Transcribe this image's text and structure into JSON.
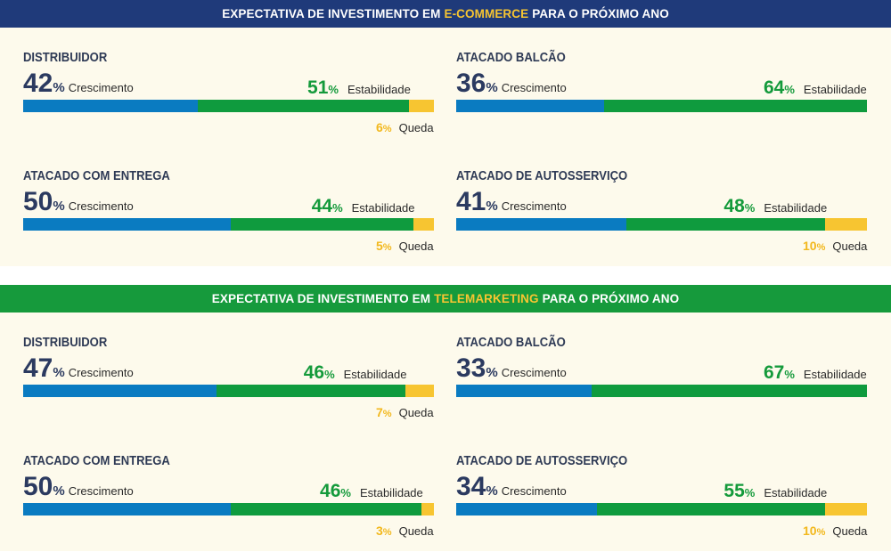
{
  "colors": {
    "growth": "#0a7bc1",
    "stability": "#0f9b3e",
    "decline": "#f7c531",
    "header_ecommerce_bg": "#1f3a7a",
    "header_telemarketing_bg": "#169a3c",
    "highlight_ecommerce": "#f7c531",
    "highlight_telemarketing": "#f7c531"
  },
  "legend": {
    "growth": "Crescimento",
    "stability": "Estabilidade",
    "decline": "Queda",
    "pct": "%"
  },
  "sections": [
    {
      "title_pre": "EXPECTATIVA DE INVESTIMENTO EM",
      "title_hl": "E-COMMERCE",
      "title_post": "PARA O PRÓXIMO ANO",
      "cards": [
        {
          "name": "DISTRIBUIDOR",
          "growth": "42",
          "stability": "51",
          "decline": "6"
        },
        {
          "name": "ATACADO BALCÃO",
          "growth": "36",
          "stability": "64",
          "decline": ""
        },
        {
          "name": "ATACADO COM ENTREGA",
          "growth": "50",
          "stability": "44",
          "decline": "5"
        },
        {
          "name": "ATACADO DE AUTOSSERVIÇO",
          "growth": "41",
          "stability": "48",
          "decline": "10"
        }
      ]
    },
    {
      "title_pre": "EXPECTATIVA DE INVESTIMENTO EM",
      "title_hl": "TELEMARKETING",
      "title_post": "PARA O PRÓXIMO ANO",
      "cards": [
        {
          "name": "DISTRIBUIDOR",
          "growth": "47",
          "stability": "46",
          "decline": "7"
        },
        {
          "name": "ATACADO BALCÃO",
          "growth": "33",
          "stability": "67",
          "decline": ""
        },
        {
          "name": "ATACADO COM ENTREGA",
          "growth": "50",
          "stability": "46",
          "decline": "3"
        },
        {
          "name": "ATACADO DE AUTOSSERVIÇO",
          "growth": "34",
          "stability": "55",
          "decline": "10"
        }
      ]
    }
  ],
  "chart_data": [
    {
      "type": "bar",
      "title": "EXPECTATIVA DE INVESTIMENTO EM E-COMMERCE PARA O PRÓXIMO ANO",
      "categories": [
        "DISTRIBUIDOR",
        "ATACADO BALCÃO",
        "ATACADO COM ENTREGA",
        "ATACADO DE AUTOSSERVIÇO"
      ],
      "series": [
        {
          "name": "Crescimento",
          "values": [
            42,
            36,
            50,
            41
          ]
        },
        {
          "name": "Estabilidade",
          "values": [
            51,
            64,
            44,
            48
          ]
        },
        {
          "name": "Queda",
          "values": [
            6,
            0,
            5,
            10
          ]
        }
      ],
      "stacked": true,
      "unit": "%"
    },
    {
      "type": "bar",
      "title": "EXPECTATIVA DE INVESTIMENTO EM TELEMARKETING PARA O PRÓXIMO ANO",
      "categories": [
        "DISTRIBUIDOR",
        "ATACADO BALCÃO",
        "ATACADO COM ENTREGA",
        "ATACADO DE AUTOSSERVIÇO"
      ],
      "series": [
        {
          "name": "Crescimento",
          "values": [
            47,
            33,
            50,
            34
          ]
        },
        {
          "name": "Estabilidade",
          "values": [
            46,
            67,
            46,
            55
          ]
        },
        {
          "name": "Queda",
          "values": [
            7,
            0,
            3,
            10
          ]
        }
      ],
      "stacked": true,
      "unit": "%"
    }
  ]
}
